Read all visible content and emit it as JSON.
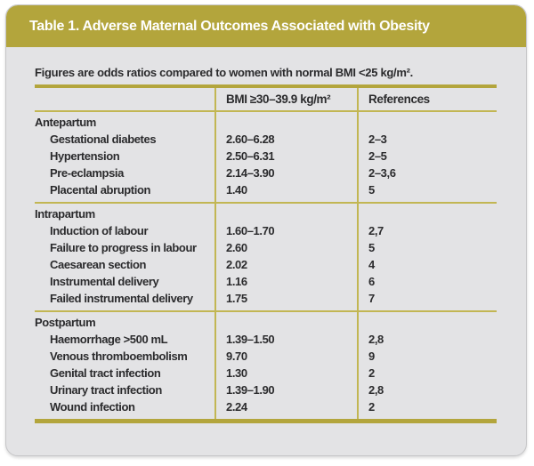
{
  "title": "Table 1. Adverse Maternal Outcomes Associated with Obesity",
  "note": "Figures are odds ratios compared to women with normal BMI <25 kg/m².",
  "columns": {
    "outcome": "",
    "bmi": "BMI ≥30–39.9 kg/m²",
    "references": "References"
  },
  "sections": [
    {
      "name": "Antepartum",
      "rows": [
        {
          "outcome": "Gestational diabetes",
          "odds": "2.60–6.28",
          "refs": "2–3"
        },
        {
          "outcome": "Hypertension",
          "odds": "2.50–6.31",
          "refs": "2–5"
        },
        {
          "outcome": "Pre-eclampsia",
          "odds": "2.14–3.90",
          "refs": "2–3,6"
        },
        {
          "outcome": "Placental abruption",
          "odds": "1.40",
          "refs": "5"
        }
      ]
    },
    {
      "name": "Intrapartum",
      "rows": [
        {
          "outcome": "Induction of labour",
          "odds": "1.60–1.70",
          "refs": "2,7"
        },
        {
          "outcome": "Failure to progress in labour",
          "odds": "2.60",
          "refs": "5"
        },
        {
          "outcome": "Caesarean section",
          "odds": "2.02",
          "refs": "4"
        },
        {
          "outcome": "Instrumental delivery",
          "odds": "1.16",
          "refs": "6"
        },
        {
          "outcome": "Failed instrumental delivery",
          "odds": "1.75",
          "refs": "7"
        }
      ]
    },
    {
      "name": "Postpartum",
      "rows": [
        {
          "outcome": "Haemorrhage >500 mL",
          "odds": "1.39–1.50",
          "refs": "2,8"
        },
        {
          "outcome": "Venous thromboembolism",
          "odds": "9.70",
          "refs": "9"
        },
        {
          "outcome": "Genital tract infection",
          "odds": "1.30",
          "refs": "2"
        },
        {
          "outcome": "Urinary tract infection",
          "odds": "1.39–1.90",
          "refs": "2,8"
        },
        {
          "outcome": "Wound infection",
          "odds": "2.24",
          "refs": "2"
        }
      ]
    }
  ],
  "colors": {
    "accent": "#b3a53c",
    "rule_light": "#c2b653",
    "card_bg": "#e3e3e5",
    "text": "#2b2b2d",
    "title_text": "#ffffff"
  }
}
